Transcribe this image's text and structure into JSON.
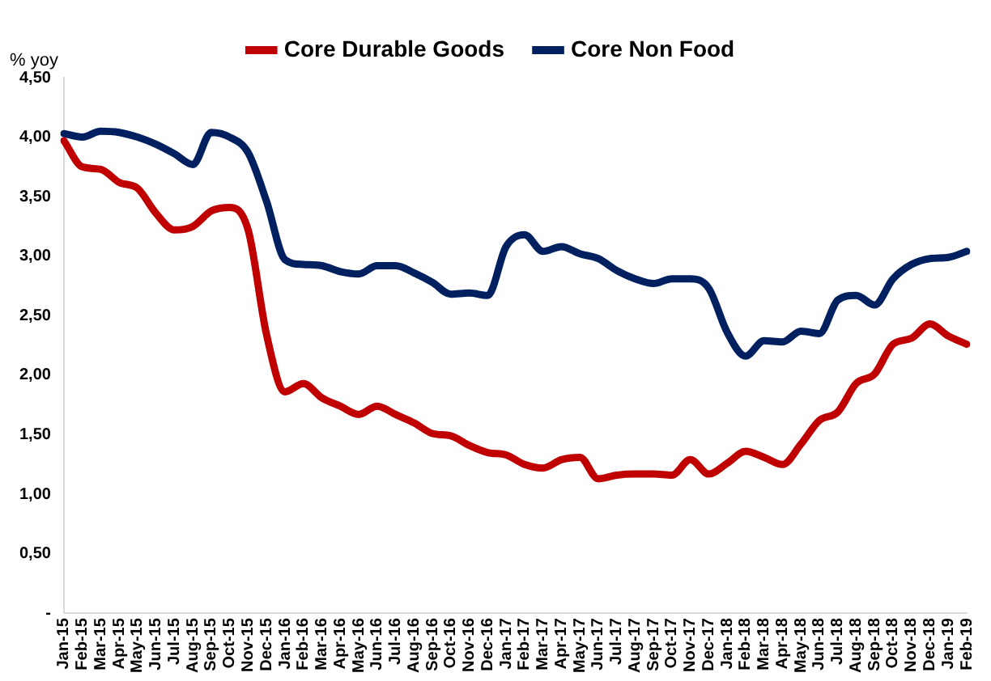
{
  "chart_data": {
    "type": "line",
    "ylabel": "% yoy",
    "categories": [
      "Jan-15",
      "Feb-15",
      "Mar-15",
      "Apr-15",
      "May-15",
      "Jun-15",
      "Jul-15",
      "Aug-15",
      "Sep-15",
      "Oct-15",
      "Nov-15",
      "Dec-15",
      "Jan-16",
      "Feb-16",
      "Mar-16",
      "Apr-16",
      "May-16",
      "Jun-16",
      "Jul-16",
      "Aug-16",
      "Sep-16",
      "Oct-16",
      "Nov-16",
      "Dec-16",
      "Jan-17",
      "Feb-17",
      "Mar-17",
      "Apr-17",
      "May-17",
      "Jun-17",
      "Jul-17",
      "Aug-17",
      "Sep-17",
      "Oct-17",
      "Nov-17",
      "Dec-17",
      "Jan-18",
      "Feb-18",
      "Mar-18",
      "Apr-18",
      "May-18",
      "Jun-18",
      "Jul-18",
      "Aug-18",
      "Sep-18",
      "Oct-18",
      "Nov-18",
      "Dec-18",
      "Jan-19",
      "Feb-19"
    ],
    "series": [
      {
        "name": "Core Durable Goods",
        "color": "#c00000",
        "values": [
          3.97,
          3.75,
          3.73,
          3.62,
          3.57,
          3.36,
          3.22,
          3.25,
          3.38,
          3.41,
          3.22,
          2.34,
          1.86,
          1.93,
          1.81,
          1.74,
          1.67,
          1.74,
          1.67,
          1.6,
          1.51,
          1.49,
          1.41,
          1.35,
          1.33,
          1.25,
          1.22,
          1.29,
          1.31,
          1.13,
          1.16,
          1.17,
          1.17,
          1.16,
          1.29,
          1.17,
          1.26,
          1.36,
          1.31,
          1.25,
          1.42,
          1.62,
          1.69,
          1.93,
          2.01,
          2.26,
          2.31,
          2.43,
          2.33,
          2.26
        ]
      },
      {
        "name": "Core Non Food",
        "color": "#002060",
        "values": [
          4.03,
          4.0,
          4.05,
          4.04,
          4.0,
          3.94,
          3.86,
          3.77,
          4.04,
          4.0,
          3.87,
          3.46,
          2.97,
          2.93,
          2.92,
          2.87,
          2.85,
          2.92,
          2.92,
          2.86,
          2.78,
          2.68,
          2.69,
          2.67,
          3.08,
          3.18,
          3.04,
          3.08,
          3.02,
          2.98,
          2.88,
          2.81,
          2.77,
          2.81,
          2.81,
          2.73,
          2.36,
          2.16,
          2.29,
          2.28,
          2.37,
          2.35,
          2.63,
          2.67,
          2.59,
          2.81,
          2.93,
          2.98,
          2.99,
          3.04
        ]
      }
    ],
    "ylim": [
      0,
      4.5
    ],
    "yticks": [
      {
        "value": 0,
        "label": "-"
      },
      {
        "value": 0.5,
        "label": "0,50"
      },
      {
        "value": 1,
        "label": "1,00"
      },
      {
        "value": 1.5,
        "label": "1,50"
      },
      {
        "value": 2,
        "label": "2,00"
      },
      {
        "value": 2.5,
        "label": "2,50"
      },
      {
        "value": 3,
        "label": "3,00"
      },
      {
        "value": 3.5,
        "label": "3,50"
      },
      {
        "value": 4,
        "label": "4,00"
      },
      {
        "value": 4.5,
        "label": "4,50"
      }
    ],
    "grid": false,
    "legend": "top",
    "marker": "none",
    "line_style": "solid"
  }
}
